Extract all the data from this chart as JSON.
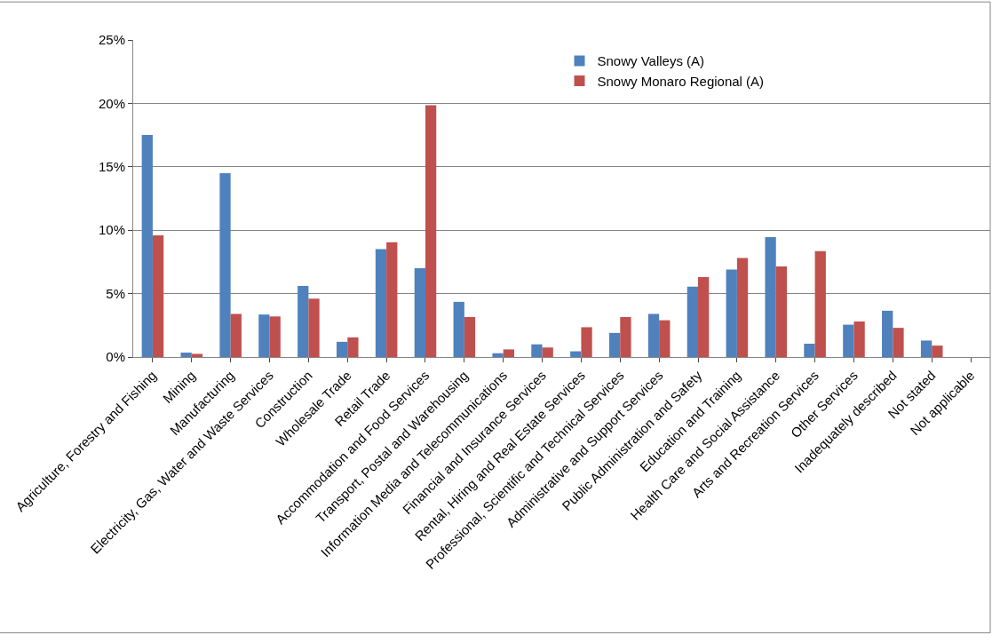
{
  "chart_data": {
    "type": "bar",
    "categories": [
      "Agriculture, Forestry and Fishing",
      "Mining",
      "Manufacturing",
      "Electricity, Gas, Water and Waste Services",
      "Construction",
      "Wholesale Trade",
      "Retail Trade",
      "Accommodation and Food Services",
      "Transport, Postal and Warehousing",
      "Information Media and Telecommunications",
      "Financial and Insurance Services",
      "Rental, Hiring and Real Estate Services",
      "Professional, Scientific and Technical Services",
      "Administrative and Support Services",
      "Public Administration and Safety",
      "Education and Training",
      "Health Care and Social Assistance",
      "Arts and Recreation Services",
      "Other Services",
      "Inadequately described",
      "Not stated",
      "Not applicable"
    ],
    "series": [
      {
        "name": "Snowy Valleys (A)",
        "color": "#4f81bd",
        "values": [
          17.5,
          0.35,
          14.5,
          3.35,
          5.6,
          1.2,
          8.5,
          7.0,
          4.35,
          0.3,
          1.0,
          0.45,
          1.9,
          3.4,
          5.55,
          6.9,
          9.45,
          1.05,
          2.55,
          3.65,
          1.3,
          null
        ]
      },
      {
        "name": "Snowy Monaro Regional (A)",
        "color": "#c0504d",
        "values": [
          9.6,
          0.25,
          3.4,
          3.2,
          4.6,
          1.55,
          9.05,
          19.85,
          3.15,
          0.6,
          0.75,
          2.35,
          3.15,
          2.9,
          6.3,
          7.8,
          7.15,
          8.35,
          2.8,
          2.3,
          0.9,
          null
        ]
      }
    ],
    "ylim": [
      0,
      25
    ],
    "yticks": [
      {
        "value": 0,
        "label": "0%"
      },
      {
        "value": 5,
        "label": "5%"
      },
      {
        "value": 10,
        "label": "10%"
      },
      {
        "value": 15,
        "label": "15%"
      },
      {
        "value": 20,
        "label": "20%"
      },
      {
        "value": 25,
        "label": "25%"
      }
    ],
    "grid": "y",
    "legend": "top right"
  }
}
